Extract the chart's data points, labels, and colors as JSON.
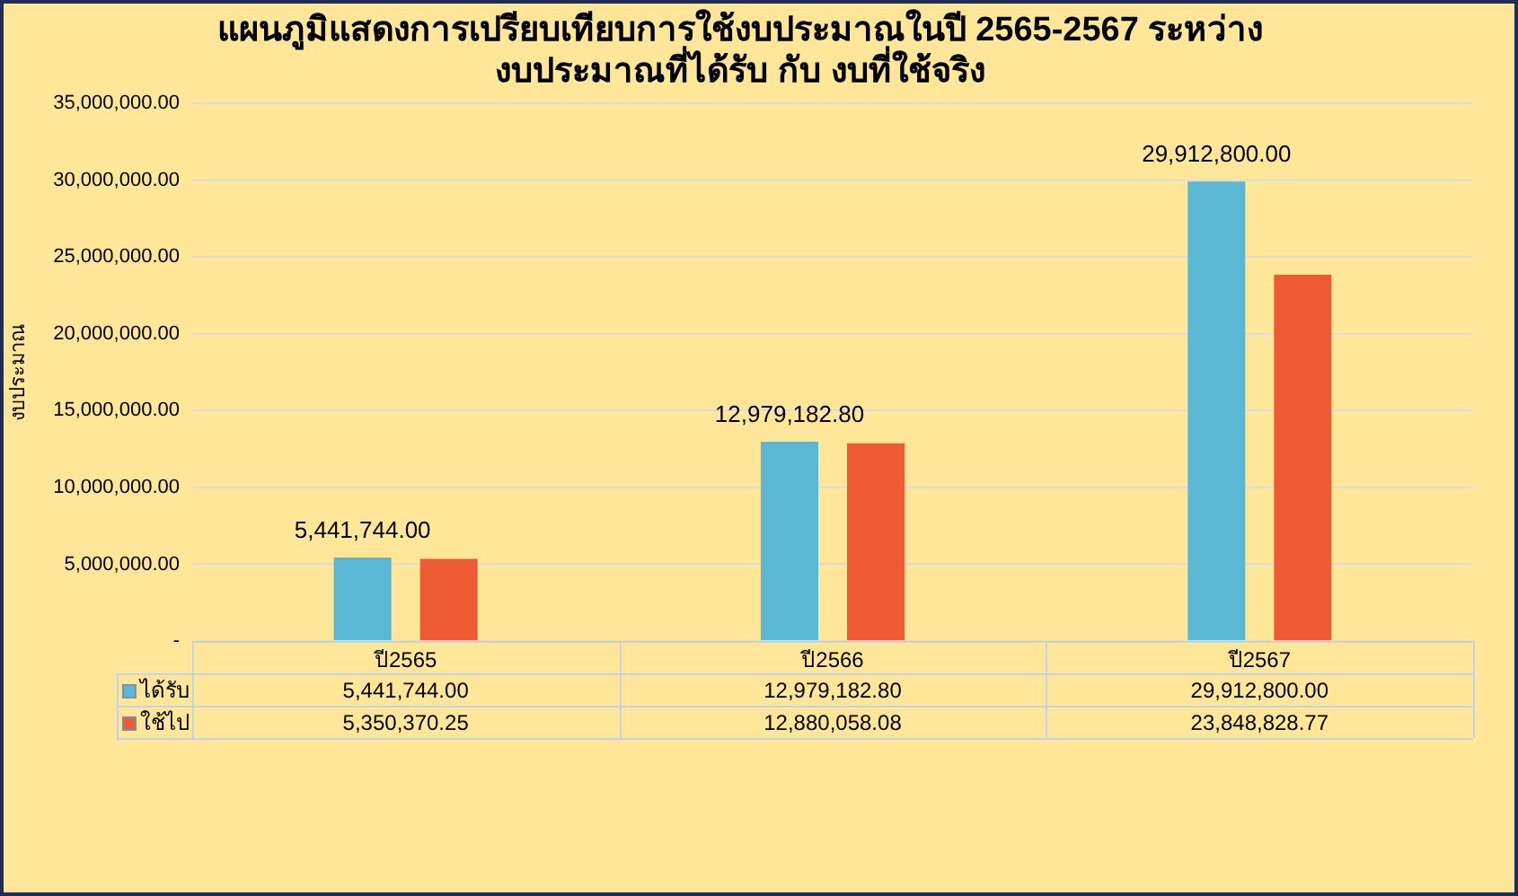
{
  "chart_data": {
    "type": "bar",
    "title": "แผนภูมิแสดงการเปรียบเทียบการใช้งบประมาณในปี 2565-2567 ระหว่าง\nงบประมาณที่ได้รับ กับ งบที่ใช้จริง",
    "ylabel": "งบประมาณ",
    "categories": [
      "ปี2565",
      "ปี2566",
      "ปี2567"
    ],
    "series": [
      {
        "name": "ได้รับ",
        "color": "#5bb8d5",
        "values": [
          5441744.0,
          12979182.8,
          29912800.0
        ],
        "value_labels": [
          "5,441,744.00",
          "12,979,182.80",
          "29,912,800.00"
        ]
      },
      {
        "name": "ใช้ไป",
        "color": "#ee5a33",
        "values": [
          5350370.25,
          12880058.08,
          23848828.77
        ],
        "value_labels": [
          "5,350,370.25",
          "12,880,058.08",
          "23,848,828.77"
        ]
      }
    ],
    "annotations": [
      "5,441,744.00",
      "12,979,182.80",
      "29,912,800.00"
    ],
    "ylim": [
      0,
      35000000
    ],
    "yticks": [
      {
        "value": 0,
        "label": "-"
      },
      {
        "value": 5000000,
        "label": "5,000,000.00"
      },
      {
        "value": 10000000,
        "label": "10,000,000.00"
      },
      {
        "value": 15000000,
        "label": "15,000,000.00"
      },
      {
        "value": 20000000,
        "label": "20,000,000.00"
      },
      {
        "value": 25000000,
        "label": "25,000,000.00"
      },
      {
        "value": 30000000,
        "label": "30,000,000.00"
      },
      {
        "value": 35000000,
        "label": "35,000,000.00"
      }
    ],
    "grid": "y",
    "legend": "bottom"
  }
}
